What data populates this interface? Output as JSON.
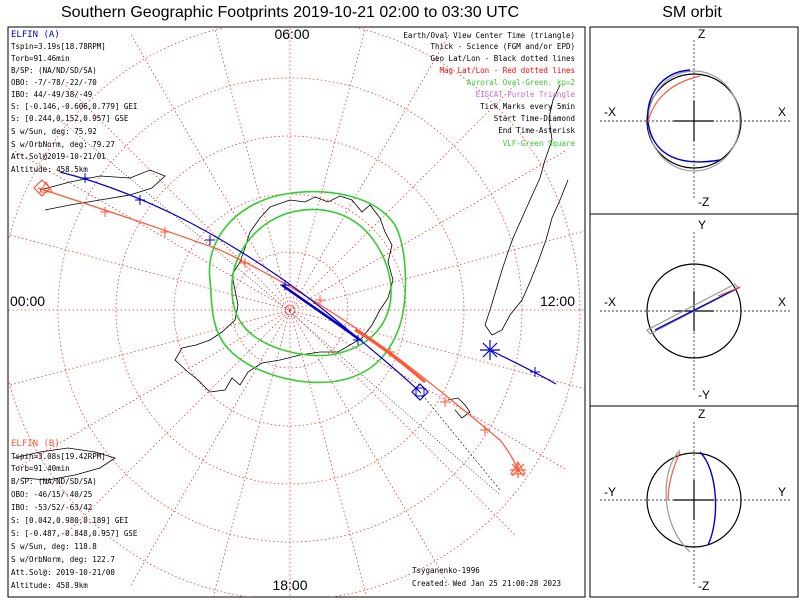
{
  "title": "Southern Geographic Footprints 2019-10-21 02:00 to 03:30 UTC",
  "sm_title": "SM orbit",
  "colors": {
    "elfin_a": "#0000cc",
    "elfin_b": "#ff5533",
    "aurora": "#33cc33",
    "grid": "#ff3333",
    "eiscat": "#bb55cc"
  },
  "clock_labels": {
    "top": "06:00",
    "bottom": "18:00",
    "left": "00:00",
    "right": "12:00"
  },
  "legend": [
    {
      "text": "Earth/Oval View Center Time (triangle)",
      "color": "#000000"
    },
    {
      "text": "Thick - Science (FGM and/or EPD)",
      "color": "#000000"
    },
    {
      "text": "Geo Lat/Lon - Black dotted lines",
      "color": "#000000"
    },
    {
      "text": "Mag Lat/Lon - Red dotted lines",
      "color": "#ff0000"
    },
    {
      "text": "Auroral Oval-Green, kp=2",
      "color": "#33cc33"
    },
    {
      "text": "EISCAT-Purple Triangle",
      "color": "#cc66cc"
    },
    {
      "text": "Tick Marks every 5min",
      "color": "#000000"
    },
    {
      "text": "Start Time-Diamond",
      "color": "#000000"
    },
    {
      "text": "End Time-Asterisk",
      "color": "#000000"
    },
    {
      "text": "VLF-Green Square",
      "color": "#33cc33"
    }
  ],
  "elfin_a": {
    "name": "ELFIN (A)",
    "lines": [
      "Tspin=3.19s[18.78RPM]",
      "Torb=91.46min",
      "B/SP: (NA/ND/SD/SA)",
      "OBO: -7/-78/-22/-70",
      "IBO: 44/-49/38/-49",
      "S: [-0.146,-0.606,0.779] GEI",
      "S: [0.244,0.152,0.957] GSE",
      "S w/Sun, deg: 75.92",
      "S w/OrbNorm, deg: 79.27",
      "Att.Sol@2019-10-21/01",
      "Altitude: 458.5km"
    ]
  },
  "elfin_b": {
    "name": "ELFIN (B)",
    "lines": [
      "Tspin=3.08s[19.42RPM]",
      "Torb=91.40min",
      "B/SP: (NA/ND/SD/SA)",
      "OBO: -46/15/-40/25",
      "IBO: -53/52/-63/42",
      "S: [0.042,0.980,0.189] GEI",
      "S: [-0.487,-0.848,0.957] GSE",
      "S w/Sun, deg: 118.8",
      "S w/OrbNorm, deg: 122.7",
      "Att.Sol@: 2019-10-21/00",
      "Altitude: 458.9km"
    ]
  },
  "footer": {
    "model": "Tsyganenko-1996",
    "created": "Created: Wed Jan 25 21:00:28 2023"
  },
  "sm_panels": [
    {
      "name": "xz",
      "top": "Z",
      "bottom": "-Z",
      "left": "-X",
      "right": "X"
    },
    {
      "name": "xy",
      "top": "Y",
      "bottom": "-Y",
      "left": "-X",
      "right": "X"
    },
    {
      "name": "yz",
      "top": "Z",
      "bottom": "-Z",
      "left": "-Y",
      "right": "Y"
    }
  ],
  "chart_data": {
    "type": "polar-footprint-map",
    "hemisphere": "south",
    "start_utc": "2019-10-21 02:00",
    "end_utc": "2019-10-21 03:30",
    "mag_lat_circles_deg": [
      -80,
      -70,
      -60,
      -50,
      -40
    ],
    "mlt_spokes_hours": [
      0,
      1,
      2,
      3,
      4,
      5,
      6,
      7,
      8,
      9,
      10,
      11,
      12,
      13,
      14,
      15,
      16,
      17,
      18,
      19,
      20,
      21,
      22,
      23
    ],
    "kp": 2,
    "series": [
      {
        "name": "ELFIN (A)",
        "color": "#0000cc"
      },
      {
        "name": "ELFIN (B)",
        "color": "#ff5533"
      }
    ]
  }
}
